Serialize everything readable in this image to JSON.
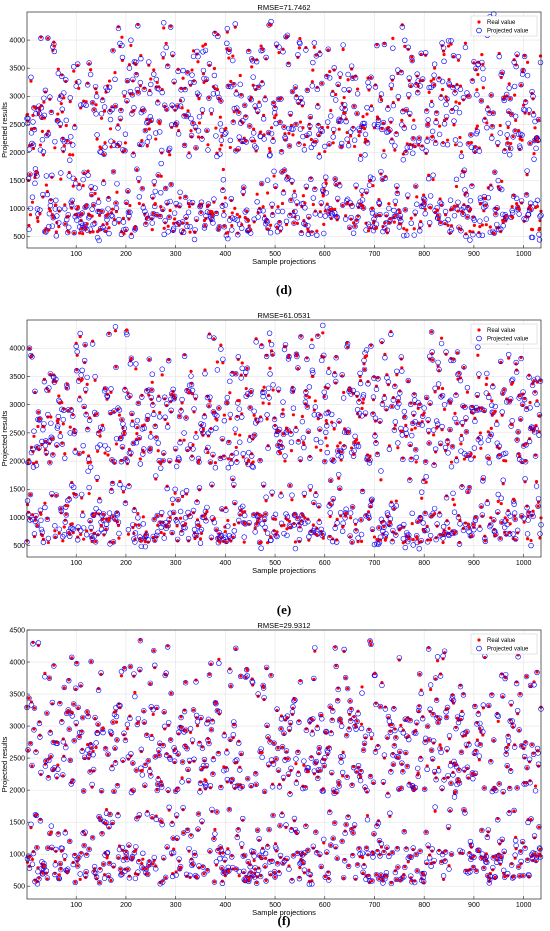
{
  "chart_data": [
    {
      "type": "scatter",
      "panel_label": "(d)",
      "title": "RMSE=71.7462",
      "xlabel": "Sample projections",
      "ylabel": "Projected results",
      "xlim": [
        1,
        1035
      ],
      "ylim": [
        300,
        4500
      ],
      "xticks": [
        100,
        200,
        300,
        400,
        500,
        600,
        700,
        800,
        900,
        1000
      ],
      "yticks": [
        500,
        1000,
        1500,
        2000,
        2500,
        3000,
        3500,
        4000
      ],
      "grid": true,
      "legend_position": "top-right",
      "series": [
        {
          "name": "Real value",
          "color": "#ff0000",
          "marker": "filled-dot"
        },
        {
          "name": "Projected value",
          "color": "#0000ff",
          "marker": "open-circle"
        }
      ],
      "n_points": 1035,
      "noise": 72,
      "seed": 11
    },
    {
      "type": "scatter",
      "panel_label": "(e)",
      "title": "RMSE=61.0531",
      "xlabel": "Sample projections",
      "ylabel": "Projected results",
      "xlim": [
        1,
        1035
      ],
      "ylim": [
        300,
        4500
      ],
      "xticks": [
        100,
        200,
        300,
        400,
        500,
        600,
        700,
        800,
        900,
        1000
      ],
      "yticks": [
        500,
        1000,
        1500,
        2000,
        2500,
        3000,
        3500,
        4000
      ],
      "grid": true,
      "legend_position": "top-right",
      "series": [
        {
          "name": "Real value",
          "color": "#ff0000",
          "marker": "filled-dot"
        },
        {
          "name": "Projected value",
          "color": "#0000ff",
          "marker": "open-circle"
        }
      ],
      "n_points": 1035,
      "noise": 61,
      "seed": 23
    },
    {
      "type": "scatter",
      "panel_label": "(f)",
      "title": "RMSE=29.9312",
      "xlabel": "Sample projections",
      "ylabel": "Projected results",
      "xlim": [
        1,
        1035
      ],
      "ylim": [
        300,
        4500
      ],
      "xticks": [
        100,
        200,
        300,
        400,
        500,
        600,
        700,
        800,
        900,
        1000
      ],
      "yticks": [
        500,
        1000,
        1500,
        2000,
        2500,
        3000,
        3500,
        4000,
        4500
      ],
      "grid": true,
      "legend_position": "top-right",
      "series": [
        {
          "name": "Real value",
          "color": "#ff0000",
          "marker": "filled-dot"
        },
        {
          "name": "Projected value",
          "color": "#0000ff",
          "marker": "open-circle"
        }
      ],
      "n_points": 1035,
      "noise": 30,
      "seed": 37
    }
  ]
}
